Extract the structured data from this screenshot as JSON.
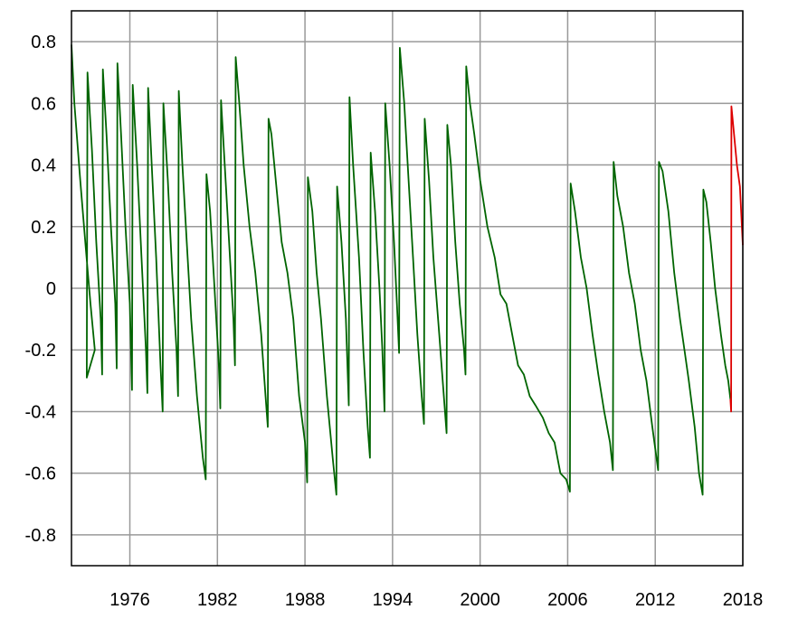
{
  "chart_data": {
    "type": "line",
    "title": "",
    "xlabel": "",
    "ylabel": "",
    "xlim": [
      1972.0,
      2018.0
    ],
    "ylim": [
      -0.9,
      0.9
    ],
    "grid": true,
    "x_ticks": [
      "1976",
      "1982",
      "1988",
      "1994",
      "2000",
      "2006",
      "2012",
      "2018"
    ],
    "x_tick_values": [
      1976,
      1982,
      1988,
      1994,
      2000,
      2006,
      2012,
      2018
    ],
    "y_ticks": [
      "0.8",
      "0.6",
      "0.4",
      "0.2",
      "0",
      "-0.2",
      "-0.4",
      "-0.6",
      "-0.8"
    ],
    "y_tick_values": [
      0.8,
      0.6,
      0.4,
      0.2,
      0,
      -0.2,
      -0.4,
      -0.6,
      -0.8
    ],
    "colors": {
      "series_main": "#006400",
      "series_recent": "#dd0000",
      "grid": "#999999",
      "frame": "#000000"
    },
    "series": [
      {
        "color": "#006400",
        "points": [
          [
            1972.0,
            0.79
          ],
          [
            1972.2,
            0.6
          ],
          [
            1972.6,
            0.35
          ],
          [
            1973.0,
            0.12
          ],
          [
            1973.3,
            -0.05
          ],
          [
            1973.6,
            -0.2
          ],
          [
            1973.05,
            -0.29
          ],
          [
            1973.05,
            -0.29
          ],
          [
            1973.1,
            0.7
          ],
          [
            1973.4,
            0.45
          ],
          [
            1973.7,
            0.15
          ],
          [
            1974.0,
            -0.1
          ],
          [
            1974.1,
            -0.28
          ],
          [
            1974.1,
            -0.28
          ],
          [
            1974.15,
            0.71
          ],
          [
            1974.4,
            0.5
          ],
          [
            1974.7,
            0.2
          ],
          [
            1975.0,
            -0.05
          ],
          [
            1975.1,
            -0.26
          ],
          [
            1975.1,
            -0.26
          ],
          [
            1975.15,
            0.73
          ],
          [
            1975.4,
            0.5
          ],
          [
            1975.7,
            0.2
          ],
          [
            1976.0,
            -0.05
          ],
          [
            1976.15,
            -0.33
          ],
          [
            1976.15,
            -0.33
          ],
          [
            1976.2,
            0.66
          ],
          [
            1976.5,
            0.4
          ],
          [
            1976.8,
            0.1
          ],
          [
            1977.1,
            -0.2
          ],
          [
            1977.2,
            -0.34
          ],
          [
            1977.2,
            -0.34
          ],
          [
            1977.25,
            0.65
          ],
          [
            1977.5,
            0.4
          ],
          [
            1977.8,
            0.1
          ],
          [
            1978.1,
            -0.25
          ],
          [
            1978.25,
            -0.4
          ],
          [
            1978.25,
            -0.4
          ],
          [
            1978.3,
            0.6
          ],
          [
            1978.6,
            0.35
          ],
          [
            1978.9,
            0.05
          ],
          [
            1979.2,
            -0.2
          ],
          [
            1979.3,
            -0.35
          ],
          [
            1979.3,
            -0.35
          ],
          [
            1979.35,
            0.64
          ],
          [
            1979.6,
            0.4
          ],
          [
            1979.9,
            0.15
          ],
          [
            1980.2,
            -0.1
          ],
          [
            1980.6,
            -0.35
          ],
          [
            1981.0,
            -0.55
          ],
          [
            1981.2,
            -0.62
          ],
          [
            1981.2,
            -0.62
          ],
          [
            1981.25,
            0.37
          ],
          [
            1981.5,
            0.25
          ],
          [
            1981.8,
            0.0
          ],
          [
            1982.1,
            -0.25
          ],
          [
            1982.2,
            -0.39
          ],
          [
            1982.2,
            -0.39
          ],
          [
            1982.25,
            0.61
          ],
          [
            1982.5,
            0.4
          ],
          [
            1982.8,
            0.15
          ],
          [
            1983.1,
            -0.1
          ],
          [
            1983.2,
            -0.25
          ],
          [
            1983.2,
            -0.25
          ],
          [
            1983.25,
            0.75
          ],
          [
            1983.5,
            0.6
          ],
          [
            1983.8,
            0.4
          ],
          [
            1984.2,
            0.2
          ],
          [
            1984.6,
            0.05
          ],
          [
            1985.0,
            -0.15
          ],
          [
            1985.3,
            -0.35
          ],
          [
            1985.45,
            -0.45
          ],
          [
            1985.45,
            -0.45
          ],
          [
            1985.5,
            0.55
          ],
          [
            1985.7,
            0.5
          ],
          [
            1986.0,
            0.35
          ],
          [
            1986.4,
            0.15
          ],
          [
            1986.8,
            0.05
          ],
          [
            1987.2,
            -0.1
          ],
          [
            1987.6,
            -0.35
          ],
          [
            1988.0,
            -0.5
          ],
          [
            1988.15,
            -0.63
          ],
          [
            1988.15,
            -0.63
          ],
          [
            1988.2,
            0.36
          ],
          [
            1988.5,
            0.25
          ],
          [
            1988.8,
            0.05
          ],
          [
            1989.1,
            -0.1
          ],
          [
            1989.5,
            -0.35
          ],
          [
            1989.9,
            -0.55
          ],
          [
            1990.15,
            -0.67
          ],
          [
            1990.15,
            -0.67
          ],
          [
            1990.2,
            0.33
          ],
          [
            1990.5,
            0.15
          ],
          [
            1990.8,
            -0.1
          ],
          [
            1991.0,
            -0.38
          ],
          [
            1991.0,
            -0.38
          ],
          [
            1991.05,
            0.62
          ],
          [
            1991.3,
            0.4
          ],
          [
            1991.7,
            0.1
          ],
          [
            1992.0,
            -0.2
          ],
          [
            1992.3,
            -0.45
          ],
          [
            1992.45,
            -0.55
          ],
          [
            1992.45,
            -0.55
          ],
          [
            1992.5,
            0.44
          ],
          [
            1992.8,
            0.25
          ],
          [
            1993.1,
            0.0
          ],
          [
            1993.3,
            -0.2
          ],
          [
            1993.45,
            -0.4
          ],
          [
            1993.45,
            -0.4
          ],
          [
            1993.5,
            0.6
          ],
          [
            1993.8,
            0.4
          ],
          [
            1994.1,
            0.15
          ],
          [
            1994.3,
            -0.05
          ],
          [
            1994.45,
            -0.21
          ],
          [
            1994.45,
            -0.21
          ],
          [
            1994.5,
            0.78
          ],
          [
            1994.8,
            0.6
          ],
          [
            1995.1,
            0.35
          ],
          [
            1995.4,
            0.1
          ],
          [
            1995.7,
            -0.15
          ],
          [
            1996.0,
            -0.35
          ],
          [
            1996.15,
            -0.44
          ],
          [
            1996.15,
            -0.44
          ],
          [
            1996.2,
            0.55
          ],
          [
            1996.5,
            0.35
          ],
          [
            1996.8,
            0.1
          ],
          [
            1997.2,
            -0.15
          ],
          [
            1997.7,
            -0.47
          ],
          [
            1997.7,
            -0.47
          ],
          [
            1997.75,
            0.53
          ],
          [
            1998.0,
            0.4
          ],
          [
            1998.3,
            0.15
          ],
          [
            1998.6,
            -0.05
          ],
          [
            1998.9,
            -0.2
          ],
          [
            1999.0,
            -0.28
          ],
          [
            1999.0,
            -0.28
          ],
          [
            1999.05,
            0.72
          ],
          [
            1999.3,
            0.6
          ],
          [
            1999.6,
            0.5
          ],
          [
            2000.0,
            0.35
          ],
          [
            2000.5,
            0.2
          ],
          [
            2001.0,
            0.1
          ],
          [
            2001.4,
            -0.02
          ],
          [
            2001.8,
            -0.05
          ],
          [
            2002.2,
            -0.15
          ],
          [
            2002.6,
            -0.25
          ],
          [
            2003.0,
            -0.28
          ],
          [
            2003.4,
            -0.35
          ],
          [
            2003.8,
            -0.38
          ],
          [
            2004.3,
            -0.42
          ],
          [
            2004.7,
            -0.47
          ],
          [
            2005.1,
            -0.5
          ],
          [
            2005.5,
            -0.6
          ],
          [
            2005.9,
            -0.62
          ],
          [
            2006.15,
            -0.66
          ],
          [
            2006.15,
            -0.66
          ],
          [
            2006.2,
            0.34
          ],
          [
            2006.5,
            0.25
          ],
          [
            2006.9,
            0.1
          ],
          [
            2007.3,
            0.0
          ],
          [
            2007.7,
            -0.15
          ],
          [
            2008.1,
            -0.28
          ],
          [
            2008.5,
            -0.4
          ],
          [
            2008.9,
            -0.5
          ],
          [
            2009.1,
            -0.59
          ],
          [
            2009.1,
            -0.59
          ],
          [
            2009.15,
            0.41
          ],
          [
            2009.4,
            0.3
          ],
          [
            2009.8,
            0.2
          ],
          [
            2010.2,
            0.05
          ],
          [
            2010.6,
            -0.05
          ],
          [
            2011.0,
            -0.2
          ],
          [
            2011.4,
            -0.3
          ],
          [
            2011.8,
            -0.45
          ],
          [
            2012.2,
            -0.59
          ],
          [
            2012.2,
            -0.59
          ],
          [
            2012.25,
            0.41
          ],
          [
            2012.5,
            0.38
          ],
          [
            2012.9,
            0.25
          ],
          [
            2013.3,
            0.05
          ],
          [
            2013.7,
            -0.1
          ],
          [
            2014.0,
            -0.2
          ],
          [
            2014.3,
            -0.3
          ],
          [
            2014.7,
            -0.45
          ],
          [
            2015.0,
            -0.6
          ],
          [
            2015.25,
            -0.67
          ],
          [
            2015.25,
            -0.67
          ],
          [
            2015.3,
            0.32
          ],
          [
            2015.5,
            0.28
          ],
          [
            2015.8,
            0.15
          ],
          [
            2016.1,
            0.0
          ],
          [
            2016.5,
            -0.15
          ],
          [
            2016.8,
            -0.25
          ],
          [
            2017.0,
            -0.3
          ],
          [
            2017.15,
            -0.36
          ]
        ]
      },
      {
        "color": "#dd0000",
        "points": [
          [
            2017.15,
            -0.36
          ],
          [
            2017.2,
            -0.4
          ],
          [
            2017.22,
            0.59
          ],
          [
            2017.4,
            0.5
          ],
          [
            2017.6,
            0.4
          ],
          [
            2017.8,
            0.33
          ],
          [
            2018.0,
            0.14
          ]
        ]
      }
    ]
  }
}
